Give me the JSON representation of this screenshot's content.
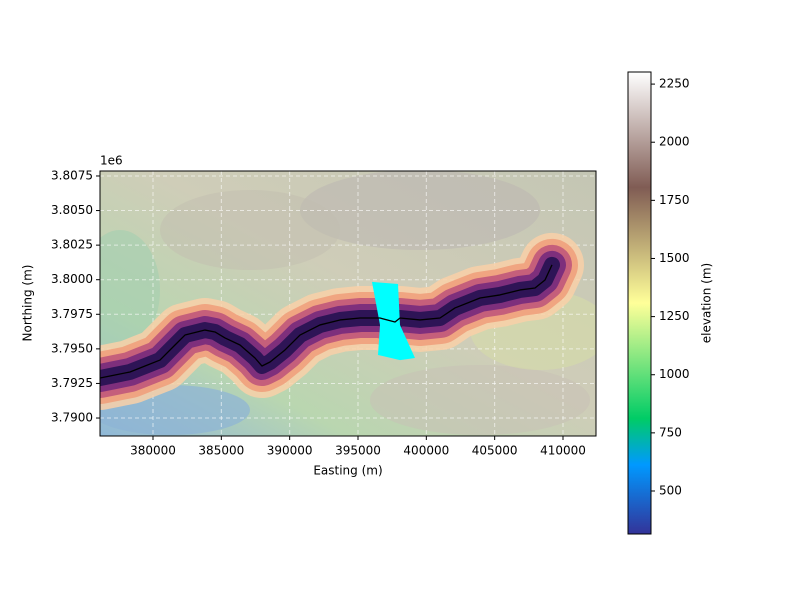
{
  "chart_data": {
    "type": "map",
    "xlabel": "Easting (m)",
    "ylabel": "Northing (m)",
    "y_offset_label": "1e6",
    "xlim": [
      376122,
      412415
    ],
    "ylim": [
      3.7887,
      3.80786
    ],
    "xticks": [
      380000,
      385000,
      390000,
      395000,
      400000,
      405000,
      410000
    ],
    "yticks": [
      {
        "value": 3.79,
        "label": "3.7900"
      },
      3.7925,
      {
        "value": 3.795,
        "label": "3.7950"
      },
      3.7975,
      {
        "value": 3.8,
        "label": "3.8000"
      },
      3.8025,
      {
        "value": 3.805,
        "label": "3.8050"
      },
      3.8075
    ],
    "grid": true,
    "river": {
      "color": "#000000",
      "x": [
        376122,
        377220,
        378317,
        379415,
        380512,
        381610,
        382341,
        383805,
        384536,
        385268,
        386366,
        387463,
        387975,
        388561,
        389658,
        390756,
        392219,
        393683,
        395146,
        396610,
        397708,
        398073,
        399537,
        401000,
        402098,
        403195,
        403927,
        405390,
        406854,
        407952,
        408683,
        409195
      ],
      "y": [
        3.79289,
        3.79311,
        3.79333,
        3.79376,
        3.79419,
        3.79528,
        3.796,
        3.79636,
        3.79622,
        3.79579,
        3.79528,
        3.79434,
        3.79376,
        3.79405,
        3.79492,
        3.796,
        3.79673,
        3.79709,
        3.79723,
        3.79723,
        3.79694,
        3.79723,
        3.79709,
        3.79723,
        3.79796,
        3.79839,
        3.79868,
        3.7989,
        3.79926,
        3.7994,
        3.79998,
        3.80107
      ]
    },
    "highlight": {
      "color": "#00ffff",
      "x": [
        396024,
        397927,
        398073,
        399171,
        398073,
        396463,
        396610
      ],
      "y": [
        3.79984,
        3.79969,
        3.79673,
        3.79434,
        3.79419,
        3.79456,
        3.79673
      ]
    },
    "colorbar": {
      "label": "elevation (m)",
      "lim": [
        315,
        2302
      ],
      "ticks": [
        500,
        750,
        1000,
        1250,
        1500,
        1750,
        2000,
        2250
      ]
    }
  }
}
